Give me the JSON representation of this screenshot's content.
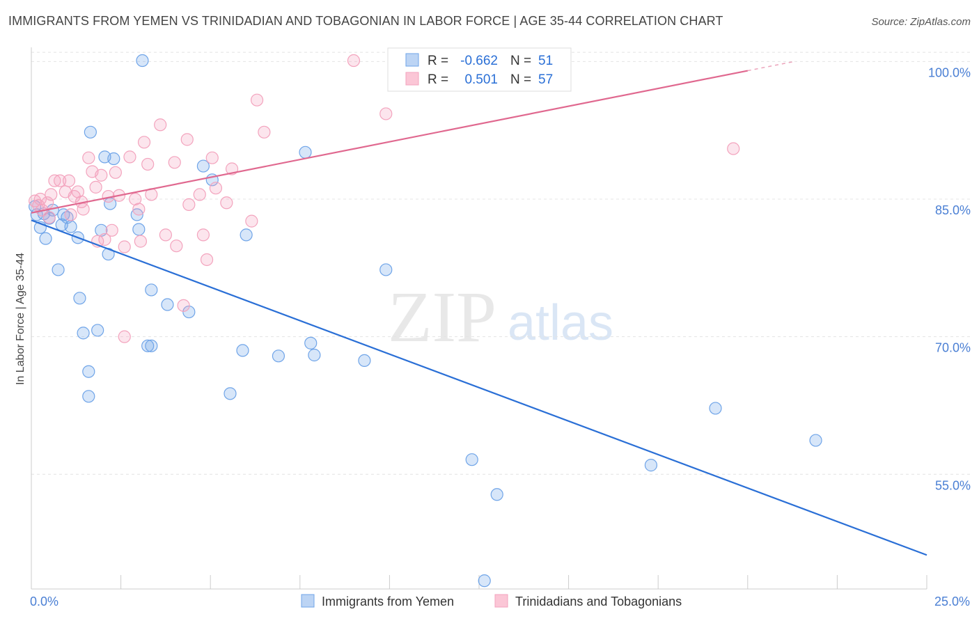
{
  "title": "IMMIGRANTS FROM YEMEN VS TRINIDADIAN AND TOBAGONIAN IN LABOR FORCE | AGE 35-44 CORRELATION CHART",
  "source": "Source: ZipAtlas.com",
  "watermark": {
    "zip": "ZIP",
    "atlas": "atlas"
  },
  "legend_box": {
    "rows": [
      {
        "r_label": "R =",
        "r_value": "-0.662",
        "n_label": "N =",
        "n_value": "51"
      },
      {
        "r_label": "R =",
        "r_value": "0.501",
        "n_label": "N =",
        "n_value": "57"
      }
    ]
  },
  "chart_data": {
    "type": "scatter",
    "title": "IMMIGRANTS FROM YEMEN VS TRINIDADIAN AND TOBAGONIAN IN LABOR FORCE | AGE 35-44 CORRELATION CHART",
    "xlabel": "",
    "ylabel": "In Labor Force | Age 35-44",
    "xlim": [
      0,
      25
    ],
    "ylim": [
      42.5,
      102
    ],
    "x_tick_labels": [
      "0.0%",
      "25.0%"
    ],
    "y_ticks": [
      55,
      70,
      85,
      100
    ],
    "y_tick_labels": [
      "55.0%",
      "70.0%",
      "85.0%",
      "100.0%"
    ],
    "grid": true,
    "legend_position": "bottom-center",
    "series": [
      {
        "name": "Immigrants from Yemen",
        "color": "#6fa4e8",
        "line_color": "#2a6fd6",
        "stats": {
          "R": -0.662,
          "N": 51
        },
        "trend": [
          [
            0,
            82.7
          ],
          [
            25,
            46.2
          ]
        ],
        "points": [
          [
            0.1,
            84.2
          ],
          [
            0.15,
            83.3
          ],
          [
            0.25,
            81.9
          ],
          [
            0.35,
            83.4
          ],
          [
            0.4,
            80.7
          ],
          [
            0.5,
            82.9
          ],
          [
            0.6,
            83.8
          ],
          [
            0.75,
            77.3
          ],
          [
            0.85,
            82.2
          ],
          [
            0.9,
            83.3
          ],
          [
            1.0,
            83.0
          ],
          [
            1.1,
            82.0
          ],
          [
            1.3,
            80.8
          ],
          [
            1.35,
            74.2
          ],
          [
            1.45,
            70.4
          ],
          [
            1.6,
            66.2
          ],
          [
            1.6,
            63.5
          ],
          [
            1.65,
            92.3
          ],
          [
            1.85,
            70.7
          ],
          [
            1.95,
            81.6
          ],
          [
            2.05,
            89.6
          ],
          [
            2.15,
            79.0
          ],
          [
            2.2,
            84.5
          ],
          [
            2.3,
            89.4
          ],
          [
            2.95,
            83.3
          ],
          [
            3.0,
            81.7
          ],
          [
            3.1,
            100.1
          ],
          [
            3.25,
            69.0
          ],
          [
            3.35,
            69.0
          ],
          [
            3.35,
            75.1
          ],
          [
            3.8,
            73.5
          ],
          [
            4.4,
            72.7
          ],
          [
            4.8,
            88.6
          ],
          [
            5.05,
            87.1
          ],
          [
            5.55,
            63.8
          ],
          [
            5.9,
            68.5
          ],
          [
            6.0,
            81.1
          ],
          [
            6.9,
            67.9
          ],
          [
            7.65,
            90.1
          ],
          [
            7.8,
            69.3
          ],
          [
            7.9,
            68.0
          ],
          [
            9.3,
            67.4
          ],
          [
            9.9,
            77.3
          ],
          [
            12.3,
            56.6
          ],
          [
            12.65,
            43.4
          ],
          [
            13.0,
            52.8
          ],
          [
            17.3,
            56.0
          ],
          [
            19.1,
            62.2
          ],
          [
            21.9,
            58.7
          ]
        ]
      },
      {
        "name": "Trinidadians and Tobagonians",
        "color": "#f3a3bd",
        "line_color": "#e0688f",
        "stats": {
          "R": 0.501,
          "N": 57
        },
        "trend": [
          [
            0,
            83.5
          ],
          [
            20,
            99.0
          ]
        ],
        "trend_dashed": [
          [
            20,
            99.0
          ],
          [
            21.3,
            100.0
          ]
        ],
        "points": [
          [
            0.1,
            84.8
          ],
          [
            0.2,
            84.3
          ],
          [
            0.25,
            85.0
          ],
          [
            0.3,
            83.8
          ],
          [
            0.45,
            84.6
          ],
          [
            0.5,
            83.0
          ],
          [
            0.55,
            85.5
          ],
          [
            0.65,
            87.0
          ],
          [
            0.8,
            87.0
          ],
          [
            0.95,
            85.8
          ],
          [
            1.05,
            87.0
          ],
          [
            1.1,
            83.3
          ],
          [
            1.2,
            85.3
          ],
          [
            1.3,
            85.8
          ],
          [
            1.4,
            84.7
          ],
          [
            1.45,
            83.9
          ],
          [
            1.6,
            89.5
          ],
          [
            1.7,
            88.0
          ],
          [
            1.8,
            86.3
          ],
          [
            1.85,
            80.4
          ],
          [
            1.95,
            87.6
          ],
          [
            2.05,
            80.6
          ],
          [
            2.15,
            85.3
          ],
          [
            2.25,
            81.6
          ],
          [
            2.35,
            87.9
          ],
          [
            2.45,
            85.4
          ],
          [
            2.6,
            79.8
          ],
          [
            2.6,
            70.0
          ],
          [
            2.75,
            89.6
          ],
          [
            2.9,
            85.0
          ],
          [
            3.0,
            83.9
          ],
          [
            3.05,
            80.4
          ],
          [
            3.15,
            91.2
          ],
          [
            3.25,
            88.8
          ],
          [
            3.35,
            85.5
          ],
          [
            3.6,
            93.1
          ],
          [
            3.75,
            81.1
          ],
          [
            4.0,
            89.0
          ],
          [
            4.05,
            79.9
          ],
          [
            4.25,
            73.4
          ],
          [
            4.35,
            91.5
          ],
          [
            4.4,
            84.4
          ],
          [
            4.7,
            85.5
          ],
          [
            4.8,
            81.1
          ],
          [
            4.9,
            78.4
          ],
          [
            5.05,
            89.5
          ],
          [
            5.15,
            86.2
          ],
          [
            5.45,
            84.6
          ],
          [
            5.6,
            88.3
          ],
          [
            6.15,
            82.6
          ],
          [
            6.3,
            95.8
          ],
          [
            6.5,
            92.3
          ],
          [
            9.0,
            100.1
          ],
          [
            9.9,
            94.3
          ],
          [
            14.0,
            98.1
          ],
          [
            19.6,
            90.5
          ]
        ]
      }
    ]
  }
}
